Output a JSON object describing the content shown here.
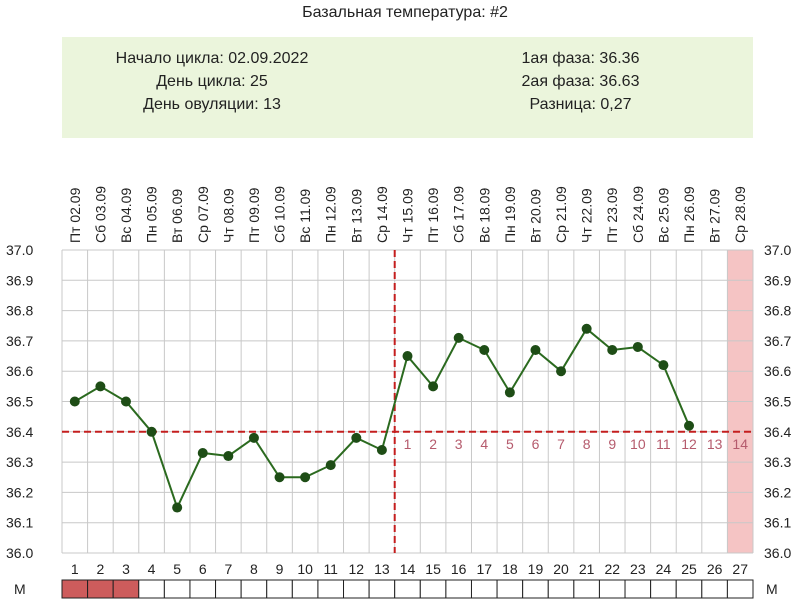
{
  "title": "Базальная температура: #2",
  "info": {
    "left": [
      "Начало цикла: 02.09.2022",
      "День цикла: 25",
      "День овуляции: 13"
    ],
    "right": [
      "1ая фаза: 36.36",
      "2ая фаза: 36.63",
      "Разница: 0,27"
    ]
  },
  "colors": {
    "line": "#2b6a1f",
    "marker": "#1e4d16",
    "reference": "#c41e1e",
    "highlight": "#f5c4c4",
    "phase_label": "#b55b6d",
    "menses": "#cd5c5c",
    "grid": "#c8c8c8"
  },
  "chart_data": {
    "type": "line",
    "series": [
      {
        "x": [
          1,
          2,
          3,
          4,
          5,
          6,
          7,
          8,
          9,
          10,
          11,
          12,
          13,
          14,
          15,
          16,
          17,
          18,
          19,
          20,
          21,
          22,
          23,
          24,
          25
        ],
        "values": [
          36.5,
          36.55,
          36.5,
          36.4,
          36.15,
          36.33,
          36.32,
          36.38,
          36.25,
          36.25,
          36.29,
          36.38,
          36.34,
          36.65,
          36.55,
          36.71,
          36.67,
          36.53,
          36.67,
          36.6,
          36.74,
          36.67,
          36.68,
          36.62,
          36.42
        ]
      }
    ],
    "days": [
      1,
      2,
      3,
      4,
      5,
      6,
      7,
      8,
      9,
      10,
      11,
      12,
      13,
      14,
      15,
      16,
      17,
      18,
      19,
      20,
      21,
      22,
      23,
      24,
      25,
      26,
      27
    ],
    "dates": [
      "Пт 02.09",
      "Сб 03.09",
      "Вс 04.09",
      "Пн 05.09",
      "Вт 06.09",
      "Ср 07.09",
      "Чт 08.09",
      "Пт 09.09",
      "Сб 10.09",
      "Вс 11.09",
      "Пн 12.09",
      "Вт 13.09",
      "Ср 14.09",
      "Чт 15.09",
      "Пт 16.09",
      "Сб 17.09",
      "Вс 18.09",
      "Пн 19.09",
      "Вт 20.09",
      "Ср 21.09",
      "Чт 22.09",
      "Пт 23.09",
      "Сб 24.09",
      "Вс 25.09",
      "Пн 26.09",
      "Вт 27.09",
      "Ср 28.09"
    ],
    "yticks": [
      "37.0",
      "36.9",
      "36.8",
      "36.7",
      "36.6",
      "36.5",
      "36.4",
      "36.3",
      "36.2",
      "36.1",
      "36.0"
    ],
    "ylim": [
      36.0,
      37.0
    ],
    "reference_line": 36.4,
    "ovulation_day": 13,
    "highlight_day": 27,
    "luteal_phase_days": [
      1,
      2,
      3,
      4,
      5,
      6,
      7,
      8,
      9,
      10,
      11,
      12,
      13,
      14
    ],
    "menses_label": "М",
    "menses_days": [
      1,
      2,
      3
    ],
    "grid": true
  }
}
